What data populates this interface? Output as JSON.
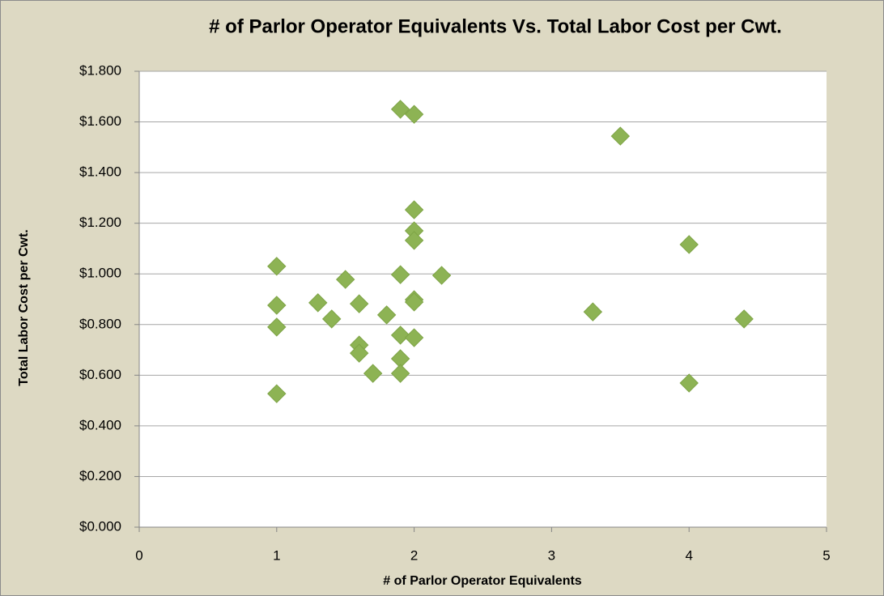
{
  "chart_data": {
    "type": "scatter",
    "title": "# of Parlor Operator Equivalents Vs. Total Labor Cost per Cwt.",
    "x_label": "# of Parlor Operator Equivalents",
    "y_label": "Total Labor Cost per Cwt.",
    "color": "#8db354",
    "grid": true,
    "xlim": [
      0,
      5
    ],
    "xticks": [
      0,
      1,
      2,
      3,
      4,
      5
    ],
    "ylim": [
      0,
      1.8
    ],
    "yticks": [
      {
        "value": 0,
        "label": "$0.000"
      },
      {
        "value": 0.2,
        "label": "$0.200"
      },
      {
        "value": 0.4,
        "label": "$0.400"
      },
      {
        "value": 0.6,
        "label": "$0.600"
      },
      {
        "value": 0.8,
        "label": "$0.800"
      },
      {
        "value": 1.0,
        "label": "$1.000"
      },
      {
        "value": 1.2,
        "label": "$1.200"
      },
      {
        "value": 1.4,
        "label": "$1.400"
      },
      {
        "value": 1.6,
        "label": "$1.600"
      },
      {
        "value": 1.8,
        "label": "$1.800"
      }
    ],
    "x": [
      1.0,
      1.0,
      1.0,
      1.0,
      1.3,
      1.4,
      1.5,
      1.6,
      1.6,
      1.6,
      1.7,
      1.8,
      1.9,
      1.9,
      1.9,
      1.9,
      1.9,
      2.0,
      2.0,
      2.0,
      2.0,
      2.0,
      2.0,
      2.0,
      2.2,
      3.3,
      3.5,
      4.0,
      4.0,
      4.4
    ],
    "values": [
      1.03,
      0.876,
      0.79,
      0.527,
      0.886,
      0.822,
      0.978,
      0.882,
      0.719,
      0.687,
      0.607,
      0.838,
      1.65,
      0.997,
      0.758,
      0.665,
      0.607,
      1.63,
      1.253,
      1.17,
      1.132,
      0.898,
      0.889,
      0.748,
      0.994,
      0.85,
      1.544,
      1.116,
      0.569,
      0.822
    ]
  }
}
